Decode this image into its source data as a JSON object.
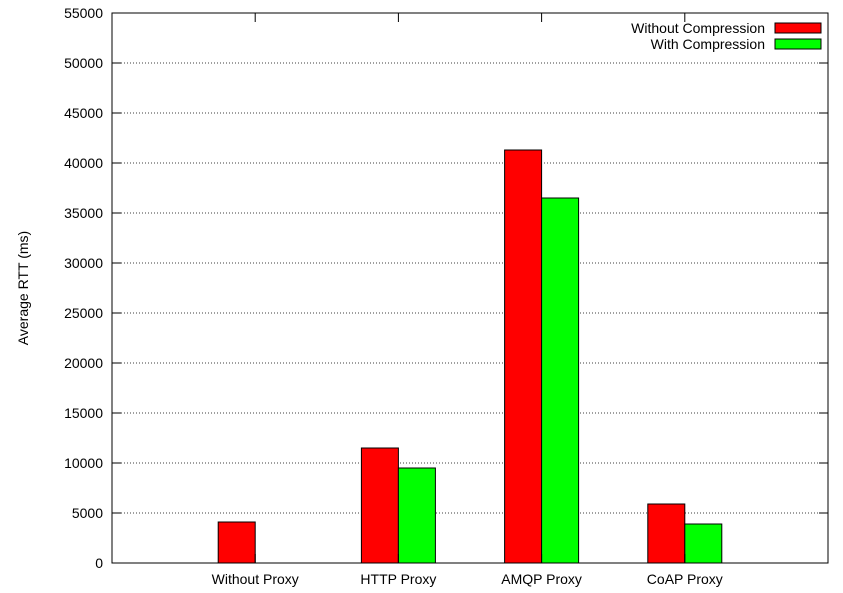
{
  "chart_data": {
    "type": "bar",
    "title": "",
    "xlabel": "",
    "ylabel": "Average RTT (ms)",
    "ylim": [
      0,
      55000
    ],
    "yticks": [
      0,
      5000,
      10000,
      15000,
      20000,
      25000,
      30000,
      35000,
      40000,
      45000,
      50000,
      55000
    ],
    "grid": true,
    "legend_position": "top-right",
    "categories": [
      "Without Proxy",
      "HTTP Proxy",
      "AMQP Proxy",
      "CoAP Proxy"
    ],
    "series": [
      {
        "name": "Without Compression",
        "color": "#ff0000",
        "values": [
          4100,
          11500,
          41300,
          5900
        ]
      },
      {
        "name": "With Compression",
        "color": "#00ff00",
        "values": [
          null,
          9500,
          36500,
          3900
        ]
      }
    ]
  }
}
